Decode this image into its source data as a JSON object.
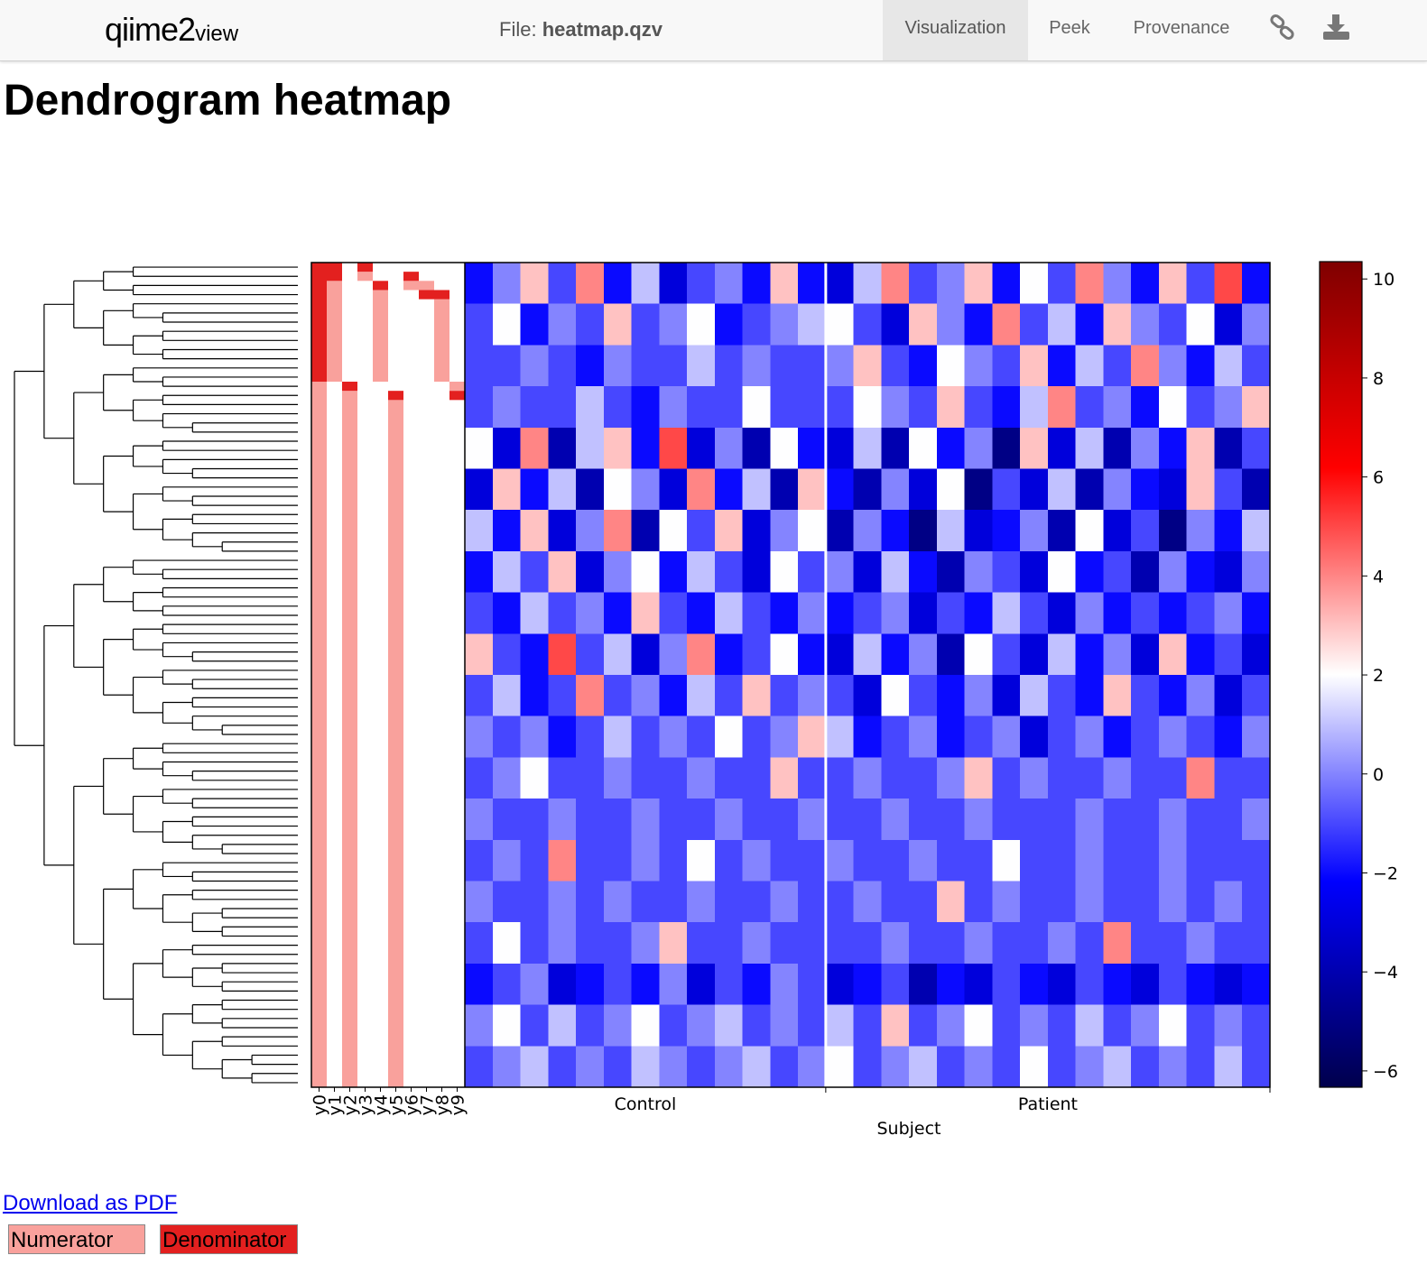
{
  "header": {
    "logo": "qiime2",
    "logo_suffix": "view",
    "file_label": "File:",
    "file_name": "heatmap.qzv",
    "tabs": [
      "Visualization",
      "Peek",
      "Provenance"
    ],
    "active_tab": 0
  },
  "title": "Dendrogram heatmap",
  "chart_data": {
    "type": "heatmap",
    "xlabel": "Subject",
    "colormap": [
      "#00004c",
      "#0000ff",
      "#ffffff",
      "#ff0000",
      "#7f0000"
    ],
    "clim": [
      -6.33,
      10.35
    ],
    "cticks": [
      {
        "value": -6,
        "label": "−6"
      },
      {
        "value": -4,
        "label": "−4"
      },
      {
        "value": -2,
        "label": "−2"
      },
      0,
      2,
      4,
      6,
      8,
      10
    ],
    "groups": [
      {
        "name": "Control",
        "values": [
          [
            -2,
            0,
            3,
            -1,
            4,
            -2,
            1,
            -3,
            -1,
            0,
            -2,
            3,
            -2
          ],
          [
            -1,
            2,
            -2,
            0,
            -1,
            3,
            -1,
            0,
            2,
            -2,
            -1,
            0,
            1
          ],
          [
            -1,
            -1,
            0,
            -1,
            -2,
            0,
            -1,
            -1,
            1,
            -1,
            0,
            -1,
            -1
          ],
          [
            -1,
            0,
            -1,
            -1,
            1,
            -1,
            -2,
            0,
            -1,
            -1,
            2,
            -1,
            -1
          ],
          [
            2,
            -3,
            4,
            -4,
            1,
            3,
            -2,
            5,
            -3,
            0,
            -4,
            2,
            -2
          ],
          [
            -3,
            3,
            -2,
            1,
            -4,
            2,
            0,
            -3,
            4,
            -2,
            1,
            -4,
            3
          ],
          [
            1,
            -2,
            3,
            -3,
            0,
            4,
            -4,
            2,
            -1,
            3,
            -3,
            0,
            2
          ],
          [
            -2,
            1,
            -1,
            3,
            -3,
            0,
            2,
            -2,
            1,
            -1,
            -3,
            2,
            -1
          ],
          [
            -1,
            -2,
            1,
            -1,
            0,
            -2,
            3,
            -1,
            -2,
            1,
            -1,
            -2,
            0
          ],
          [
            3,
            -1,
            -2,
            5,
            -1,
            1,
            -3,
            0,
            4,
            -2,
            -1,
            2,
            -2
          ],
          [
            -1,
            1,
            -2,
            -1,
            4,
            -1,
            0,
            -2,
            1,
            -1,
            3,
            -1,
            0
          ],
          [
            0,
            -1,
            0,
            -2,
            -1,
            1,
            -1,
            0,
            -1,
            2,
            -1,
            0,
            3
          ],
          [
            -1,
            0,
            2,
            -1,
            -1,
            0,
            -1,
            -1,
            0,
            -1,
            -1,
            3,
            -1
          ],
          [
            0,
            -1,
            -1,
            0,
            -1,
            -1,
            0,
            -1,
            -1,
            0,
            -1,
            -1,
            0
          ],
          [
            -1,
            0,
            -1,
            4,
            -1,
            -1,
            0,
            -1,
            2,
            -1,
            0,
            -1,
            -1
          ],
          [
            0,
            -1,
            -1,
            0,
            -1,
            0,
            -1,
            -1,
            0,
            -1,
            -1,
            0,
            -1
          ],
          [
            -1,
            2,
            -1,
            0,
            -1,
            -1,
            0,
            3,
            -1,
            -1,
            0,
            -1,
            -1
          ],
          [
            -2,
            -1,
            0,
            -3,
            -2,
            -1,
            -2,
            0,
            -3,
            -1,
            -2,
            0,
            -1
          ],
          [
            0,
            2,
            -1,
            1,
            -1,
            0,
            2,
            -1,
            0,
            1,
            -1,
            0,
            -1
          ],
          [
            -1,
            0,
            1,
            -1,
            0,
            -1,
            1,
            0,
            -1,
            0,
            1,
            -1,
            0
          ]
        ]
      },
      {
        "name": "Patient",
        "values": [
          [
            -3,
            1,
            4,
            -1,
            0,
            3,
            -2,
            2,
            -1,
            4,
            0,
            -2,
            3,
            -1,
            5,
            -2
          ],
          [
            2,
            -1,
            -3,
            3,
            0,
            -2,
            4,
            -1,
            1,
            -2,
            3,
            0,
            -1,
            2,
            -3,
            0
          ],
          [
            0,
            3,
            -1,
            -2,
            2,
            0,
            -1,
            3,
            -2,
            1,
            -1,
            4,
            0,
            -2,
            1,
            -1
          ],
          [
            -1,
            2,
            0,
            -1,
            3,
            -1,
            -2,
            1,
            4,
            -1,
            0,
            -2,
            2,
            -1,
            0,
            3
          ],
          [
            -3,
            1,
            -4,
            2,
            -2,
            0,
            -5,
            3,
            -3,
            1,
            -4,
            0,
            -2,
            3,
            -4,
            -1
          ],
          [
            -2,
            -4,
            0,
            -3,
            2,
            -5,
            -1,
            -3,
            1,
            -4,
            0,
            -2,
            -3,
            3,
            -1,
            -4
          ],
          [
            -4,
            0,
            -2,
            -5,
            1,
            -3,
            -2,
            0,
            -4,
            2,
            -3,
            -1,
            -5,
            0,
            -2,
            1
          ],
          [
            0,
            -3,
            1,
            -2,
            -4,
            0,
            -1,
            -3,
            2,
            -2,
            -1,
            -4,
            0,
            -2,
            -3,
            0
          ],
          [
            -2,
            -1,
            0,
            -3,
            -1,
            -2,
            1,
            -1,
            -3,
            0,
            -2,
            -1,
            -2,
            -1,
            0,
            -2
          ],
          [
            -3,
            1,
            -2,
            0,
            -4,
            2,
            -1,
            -3,
            1,
            -2,
            0,
            -3,
            3,
            -2,
            -1,
            -3
          ],
          [
            -1,
            -3,
            2,
            -1,
            -2,
            0,
            -3,
            1,
            -1,
            -2,
            3,
            -1,
            -2,
            0,
            -3,
            -1
          ],
          [
            1,
            -2,
            -1,
            0,
            -2,
            -1,
            0,
            -3,
            -1,
            0,
            -2,
            -1,
            0,
            -1,
            -2,
            0
          ],
          [
            -1,
            0,
            -1,
            -1,
            0,
            3,
            -1,
            0,
            -1,
            -1,
            0,
            -1,
            -1,
            4,
            -1,
            -1
          ],
          [
            -1,
            -1,
            0,
            -1,
            -1,
            0,
            -1,
            -1,
            -1,
            0,
            -1,
            -1,
            0,
            -1,
            -1,
            0
          ],
          [
            0,
            -1,
            -1,
            0,
            -1,
            -1,
            2,
            -1,
            -1,
            0,
            -1,
            -1,
            0,
            -1,
            -1,
            -1
          ],
          [
            -1,
            0,
            -1,
            -1,
            3,
            -1,
            0,
            -1,
            -1,
            0,
            -1,
            -1,
            0,
            -1,
            0,
            -1
          ],
          [
            -1,
            -1,
            0,
            -1,
            -1,
            0,
            -1,
            -1,
            0,
            -1,
            4,
            -1,
            -1,
            0,
            -1,
            -1
          ],
          [
            -3,
            -2,
            -1,
            -4,
            -2,
            -3,
            -1,
            -2,
            -3,
            -1,
            -2,
            -3,
            -1,
            -2,
            -3,
            -2
          ],
          [
            1,
            -1,
            3,
            -1,
            0,
            2,
            -1,
            0,
            -1,
            1,
            -1,
            0,
            2,
            -1,
            0,
            -1
          ],
          [
            2,
            -1,
            0,
            1,
            -1,
            0,
            -1,
            2,
            -1,
            0,
            1,
            -1,
            0,
            -1,
            1,
            -1
          ]
        ]
      }
    ],
    "balances": {
      "rows": 90,
      "numerator_color": "#f9a19c",
      "denominator_color": "#e3201f",
      "columns": [
        {
          "name": "y0",
          "denominator": [
            [
              0,
              12
            ]
          ],
          "numerator": [
            [
              13,
              89
            ]
          ]
        },
        {
          "name": "y1",
          "denominator": [
            [
              0,
              1
            ]
          ],
          "numerator": [
            [
              2,
              12
            ]
          ]
        },
        {
          "name": "y2",
          "denominator": [
            [
              13,
              13
            ]
          ],
          "numerator": [
            [
              14,
              89
            ]
          ]
        },
        {
          "name": "y3",
          "denominator": [
            [
              0,
              0
            ]
          ],
          "numerator": [
            [
              1,
              1
            ]
          ]
        },
        {
          "name": "y4",
          "denominator": [
            [
              2,
              2
            ]
          ],
          "numerator": [
            [
              3,
              12
            ]
          ]
        },
        {
          "name": "y5",
          "denominator": [
            [
              14,
              14
            ]
          ],
          "numerator": [
            [
              15,
              89
            ]
          ]
        },
        {
          "name": "y6",
          "denominator": [
            [
              1,
              1
            ]
          ],
          "numerator": [
            [
              2,
              2
            ]
          ]
        },
        {
          "name": "y7",
          "denominator": [
            [
              3,
              3
            ]
          ],
          "numerator": [
            [
              2,
              2
            ]
          ]
        },
        {
          "name": "y8",
          "denominator": [
            [
              3,
              3
            ]
          ],
          "numerator": [
            [
              4,
              12
            ]
          ]
        },
        {
          "name": "y9",
          "denominator": [
            [
              14,
              14
            ]
          ],
          "numerator": [
            [
              13,
              13
            ]
          ]
        }
      ]
    }
  },
  "links": {
    "download": "Download as PDF"
  },
  "legend": {
    "numerator": "Numerator",
    "denominator": "Denominator"
  }
}
